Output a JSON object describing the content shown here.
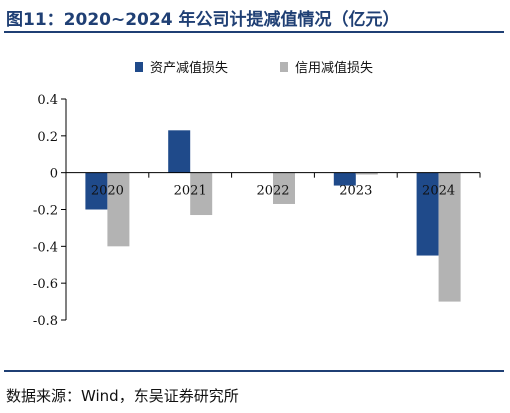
{
  "header": {
    "title": "图11：2020~2024 年公司计提减值情况（亿元）"
  },
  "footer": {
    "source": "数据来源：Wind，东吴证券研究所"
  },
  "chart_data": {
    "type": "bar",
    "title": "",
    "xlabel": "",
    "ylabel": "",
    "categories": [
      "2020",
      "2021",
      "2022",
      "2023",
      "2024"
    ],
    "series": [
      {
        "name": "资产减值损失",
        "values": [
          -0.2,
          0.23,
          0.0,
          -0.07,
          -0.45
        ],
        "color": "#1f4a8a"
      },
      {
        "name": "信用减值损失",
        "values": [
          -0.4,
          -0.23,
          -0.17,
          -0.01,
          -0.7
        ],
        "color": "#b3b3b3"
      }
    ],
    "ylim": [
      -0.8,
      0.4
    ],
    "yticks": [
      "0.4",
      "0.2",
      "0",
      "-0.2",
      "-0.4",
      "-0.6",
      "-0.8"
    ],
    "legend_position": "top-center",
    "grid": false
  }
}
